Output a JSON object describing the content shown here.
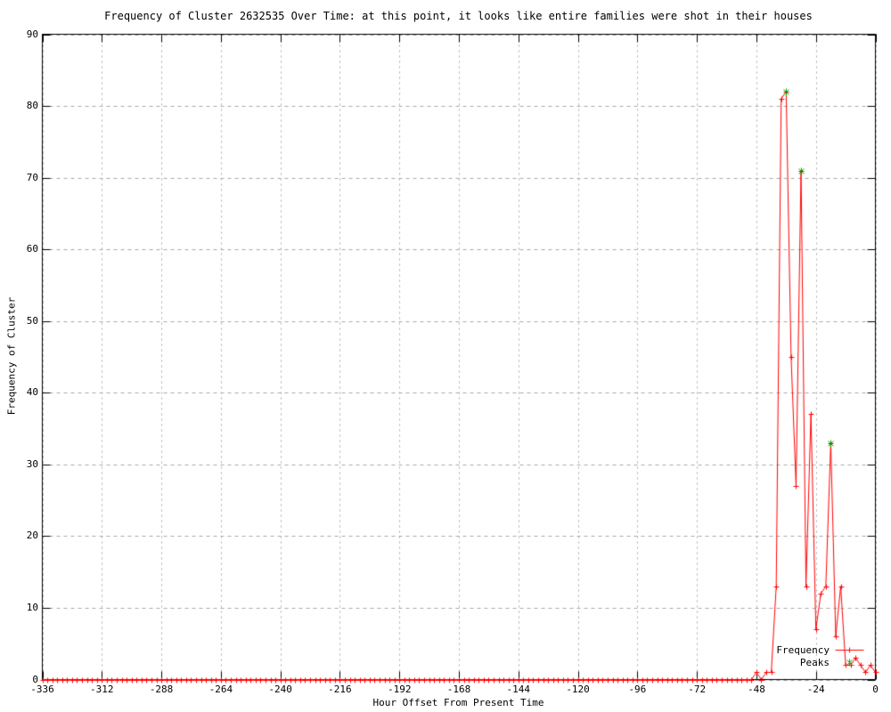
{
  "chart_data": {
    "type": "line",
    "title": "Frequency of Cluster 2632535 Over Time: at this point, it looks like entire families were shot in their houses",
    "xlabel": "Hour Offset From Present Time",
    "ylabel": "Frequency of Cluster",
    "xlim": [
      -336,
      0
    ],
    "ylim": [
      0,
      90
    ],
    "x_ticks": [
      -336,
      -312,
      -288,
      -264,
      -240,
      -216,
      -192,
      -168,
      -144,
      -120,
      -96,
      -72,
      -48,
      -24,
      0
    ],
    "y_ticks": [
      0,
      10,
      20,
      30,
      40,
      50,
      60,
      70,
      80,
      90
    ],
    "grid": true,
    "legend_position": "inside-bottom-right",
    "colors": {
      "frequency": "#ff0000",
      "peaks": "#00a000",
      "grid": "#a8a8a8",
      "border": "#000000",
      "background": "#ffffff",
      "text": "#000000"
    },
    "series": [
      {
        "name": "Frequency",
        "type": "linespoints",
        "marker": "plus",
        "color": "#ff0000",
        "x_start": -336,
        "x_step": 2,
        "values": [
          0,
          0,
          0,
          0,
          0,
          0,
          0,
          0,
          0,
          0,
          0,
          0,
          0,
          0,
          0,
          0,
          0,
          0,
          0,
          0,
          0,
          0,
          0,
          0,
          0,
          0,
          0,
          0,
          0,
          0,
          0,
          0,
          0,
          0,
          0,
          0,
          0,
          0,
          0,
          0,
          0,
          0,
          0,
          0,
          0,
          0,
          0,
          0,
          0,
          0,
          0,
          0,
          0,
          0,
          0,
          0,
          0,
          0,
          0,
          0,
          0,
          0,
          0,
          0,
          0,
          0,
          0,
          0,
          0,
          0,
          0,
          0,
          0,
          0,
          0,
          0,
          0,
          0,
          0,
          0,
          0,
          0,
          0,
          0,
          0,
          0,
          0,
          0,
          0,
          0,
          0,
          0,
          0,
          0,
          0,
          0,
          0,
          0,
          0,
          0,
          0,
          0,
          0,
          0,
          0,
          0,
          0,
          0,
          0,
          0,
          0,
          0,
          0,
          0,
          0,
          0,
          0,
          0,
          0,
          0,
          0,
          0,
          0,
          0,
          0,
          0,
          0,
          0,
          0,
          0,
          0,
          0,
          0,
          0,
          0,
          0,
          0,
          0,
          0,
          0,
          0,
          0,
          0,
          0,
          1,
          0,
          1,
          1,
          13,
          81,
          82,
          45,
          27,
          71,
          13,
          37,
          7,
          12,
          13,
          33,
          6,
          13,
          2,
          2,
          3,
          2,
          1,
          2,
          1
        ]
      },
      {
        "name": "Peaks",
        "type": "points",
        "marker": "star",
        "color": "#00a000",
        "points": [
          [
            -36,
            82
          ],
          [
            -30,
            71
          ],
          [
            -18,
            33
          ]
        ]
      }
    ]
  }
}
